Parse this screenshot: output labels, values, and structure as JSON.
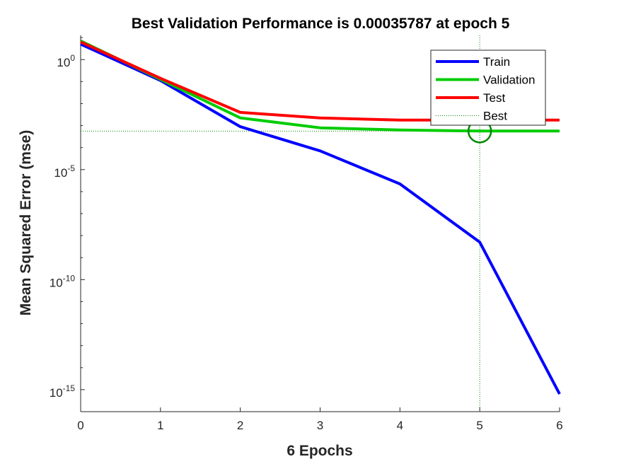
{
  "chart_data": {
    "type": "line",
    "title": "Best Validation Performance is 0.00035787 at epoch 5",
    "xlabel": "6 Epochs",
    "ylabel": "Mean Squared Error  (mse)",
    "y_scale": "log",
    "xlim": [
      0,
      6
    ],
    "ylim_log10": [
      -16,
      1.1
    ],
    "x_ticks": [
      0,
      1,
      2,
      3,
      4,
      5,
      6
    ],
    "y_ticks": [
      {
        "exp": 0,
        "base": "10",
        "sup": "0"
      },
      {
        "exp": -5,
        "base": "10",
        "sup": "-5"
      },
      {
        "exp": -10,
        "base": "10",
        "sup": "-10"
      },
      {
        "exp": -15,
        "base": "10",
        "sup": "-15"
      }
    ],
    "x": [
      0,
      1,
      2,
      3,
      4,
      5,
      6
    ],
    "series": [
      {
        "name": "Train",
        "color": "#0000ff",
        "log10_values": [
          0.7,
          -0.95,
          -3.05,
          -4.15,
          -5.65,
          -8.3,
          -15.2
        ]
      },
      {
        "name": "Validation",
        "color": "#00cc00",
        "log10_values": [
          0.85,
          -0.9,
          -2.65,
          -3.1,
          -3.2,
          -3.25,
          -3.25
        ]
      },
      {
        "name": "Test",
        "color": "#ff0000",
        "log10_values": [
          0.8,
          -0.85,
          -2.4,
          -2.65,
          -2.75,
          -2.75,
          -2.75
        ]
      }
    ],
    "best": {
      "label": "Best",
      "epoch": 5,
      "value": 0.00035787,
      "log10_value": -3.25,
      "color": "#008800"
    },
    "legend_position": "top-right",
    "grid": false
  }
}
